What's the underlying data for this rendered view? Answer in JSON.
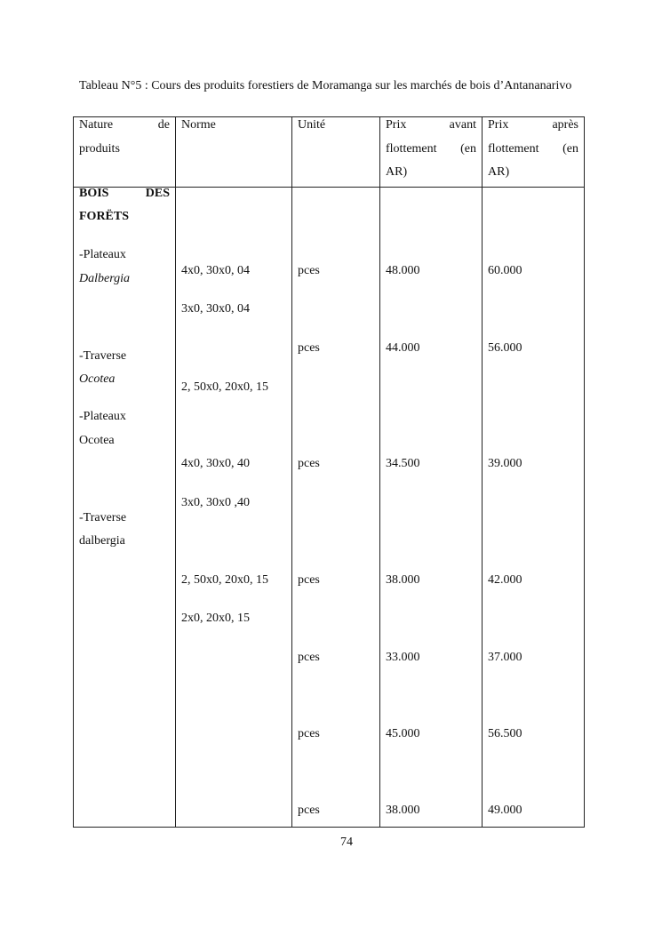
{
  "caption": "Tableau N°5 : Cours des produits forestiers de Moramanga sur les marchés de bois d’Antananarivo",
  "headers": {
    "nature": [
      "Nature",
      "de",
      "produits"
    ],
    "norme": "Norme",
    "unite": "Unité",
    "prix_avant": [
      "Prix",
      "avant",
      "flottement",
      "(en",
      "AR)"
    ],
    "prix_apres": [
      "Prix",
      "après",
      "flottement",
      "(en",
      "AR)"
    ]
  },
  "category": [
    "BOIS",
    "DES",
    "FORËTS"
  ],
  "products": [
    {
      "line1": "-Plateaux",
      "line2": "Dalbergia",
      "italic": true
    },
    {
      "line1": "-Traverse",
      "line2": "Ocotea",
      "italic": true
    },
    {
      "line1": "-Plateaux",
      "line2": "Ocotea",
      "italic": false
    },
    {
      "line1": "-Traverse",
      "line2": "dalbergia",
      "italic": false
    }
  ],
  "normes": [
    "4x0, 30x0, 04",
    "3x0, 30x0, 04",
    "2, 50x0, 20x0, 15",
    "4x0, 30x0, 40",
    "3x0, 30x0 ,40",
    "2, 50x0, 20x0, 15",
    "2x0, 20x0, 15"
  ],
  "rows": [
    {
      "unite": "pces",
      "avant": "48.000",
      "apres": "60.000"
    },
    {
      "unite": "pces",
      "avant": "44.000",
      "apres": "56.000"
    },
    {
      "unite": "pces",
      "avant": "34.500",
      "apres": "39.000"
    },
    {
      "unite": "pces",
      "avant": "38.000",
      "apres": "42.000"
    },
    {
      "unite": "pces",
      "avant": "33.000",
      "apres": "37.000"
    },
    {
      "unite": "pces",
      "avant": "45.000",
      "apres": "56.500"
    },
    {
      "unite": "pces",
      "avant": "38.000",
      "apres": "49.000"
    }
  ],
  "page_number": "74"
}
